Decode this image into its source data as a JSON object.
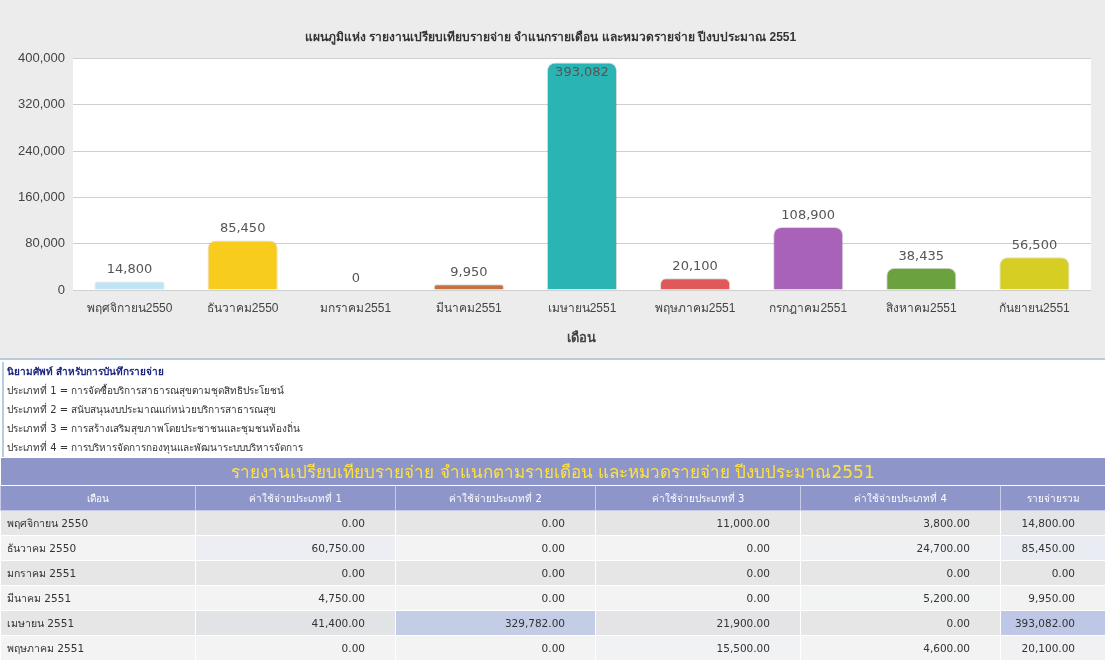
{
  "chart_data": [
    {
      "type": "bar",
      "title": "แผนภูมิแห่ง รายงานเปรียบเทียบรายจ่าย จำแนกรายเดือน และหมวดรายจ่าย ปีงบประมาณ 2551",
      "xlabel": "เดือน",
      "categories": [
        "พฤศจิกายน2550",
        "ธันวาคม2550",
        "มกราคม2551",
        "มีนาคม2551",
        "เมษายน2551",
        "พฤษภาคม2551",
        "กรกฎาคม2551",
        "สิงหาคม2551",
        "กันยายน2551"
      ],
      "values": [
        14800,
        85450,
        0,
        9950,
        393082,
        20100,
        108900,
        38435,
        56500
      ],
      "value_labels": [
        "14,800",
        "85,450",
        "0",
        "9,950",
        "393,082",
        "20,100",
        "108,900",
        "38,435",
        "56,500"
      ],
      "colors": [
        "#bfe4f4",
        "#f7cc1c",
        "#9ea43c",
        "#c8703c",
        "#2ab4b4",
        "#e05858",
        "#a862b8",
        "#6ca23e",
        "#d6ce22"
      ],
      "ylim": [
        0,
        400000
      ],
      "yticks": [
        {
          "value": 0,
          "label": "0"
        },
        {
          "value": 80000,
          "label": "80,000"
        },
        {
          "value": 160000,
          "label": "160,000"
        },
        {
          "value": 240000,
          "label": "240,000"
        },
        {
          "value": 320000,
          "label": "320,000"
        },
        {
          "value": 400000,
          "label": "400,000"
        }
      ],
      "grid": "y"
    },
    {
      "type": "other",
      "title": "นิยามศัพท์ สำหรับการบันทึกรายจ่าย",
      "annotations": [
        "ประเภทที่ 1 = การจัดซื้อบริการสาธารณสุขตามชุดสิทธิประโยชน์",
        "ประเภทที่ 2 = สนับสนุนงบประมาณแก่หน่วยบริการสาธารณสุข",
        "ประเภทที่ 3 = การสร้างเสริมสุขภาพโดยประชาชนและชุมชนท้องถิ่น",
        "ประเภทที่ 4 = การบริหารจัดการกองทุนและพัฒนาระบบบริหารจัดการ"
      ]
    },
    {
      "type": "heatmap",
      "title": "รายงานเปรียบเทียบรายจ่าย จำแนกตามรายเดือน และหมวดรายจ่าย ปีงบประมาณ2551",
      "ylabel": "เดือน",
      "categories": [
        "ค่าใช้จ่ายประเภทที่ 1",
        "ค่าใช้จ่ายประเภทที่ 2",
        "ค่าใช้จ่ายประเภทที่ 3",
        "ค่าใช้จ่ายประเภทที่ 4",
        "รายจ่ายรวม"
      ],
      "y_categories": [
        "พฤศจิกายน 2550",
        "ธันวาคม 2550",
        "มกราคม 2551",
        "มีนาคม 2551",
        "เมษายน 2551",
        "พฤษภาคม 2551"
      ],
      "cells": [
        [
          0,
          0,
          11000,
          3800,
          14800
        ],
        [
          60750,
          0,
          0,
          24700,
          85450
        ],
        [
          0,
          0,
          0,
          0,
          0
        ],
        [
          4750,
          0,
          0,
          5200,
          9950
        ],
        [
          41400,
          329782,
          21900,
          0,
          393082
        ],
        [
          0,
          0,
          15500,
          4600,
          20100
        ]
      ],
      "cell_labels": [
        [
          "0.00",
          "0.00",
          "11,000.00",
          "3,800.00",
          "14,800.00"
        ],
        [
          "60,750.00",
          "0.00",
          "0.00",
          "24,700.00",
          "85,450.00"
        ],
        [
          "0.00",
          "0.00",
          "0.00",
          "0.00",
          "0.00"
        ],
        [
          "4,750.00",
          "0.00",
          "0.00",
          "5,200.00",
          "9,950.00"
        ],
        [
          "41,400.00",
          "329,782.00",
          "21,900.00",
          "0.00",
          "393,082.00"
        ],
        [
          "0.00",
          "0.00",
          "15,500.00",
          "4,600.00",
          "20,100.00"
        ]
      ]
    }
  ]
}
